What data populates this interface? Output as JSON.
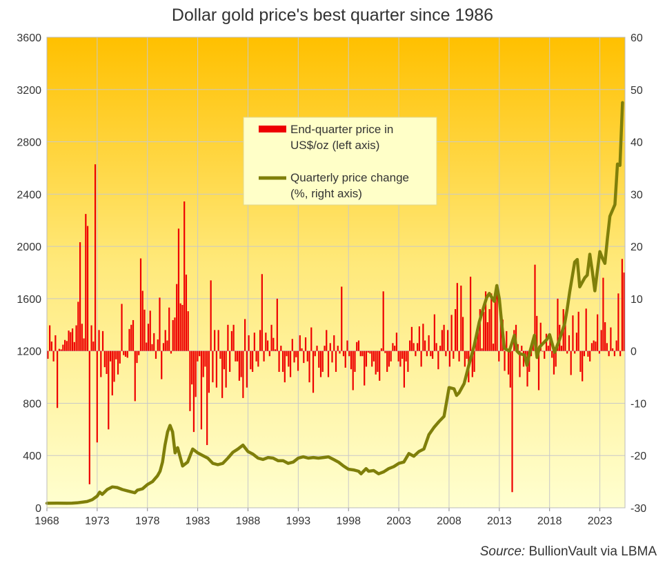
{
  "chart_data": {
    "type": "bar+line",
    "title": "Dollar gold price's best quarter since 1986",
    "source_prefix": "Source:",
    "source_text": "BullionVault via LBMA",
    "x_ticks": [
      "1968",
      "1973",
      "1978",
      "1983",
      "1988",
      "1993",
      "1998",
      "2003",
      "2008",
      "2013",
      "2018",
      "2023"
    ],
    "x_range": [
      1968,
      2025.5
    ],
    "left_axis": {
      "ticks": [
        0,
        400,
        800,
        1200,
        1600,
        2000,
        2400,
        2800,
        3200,
        3600
      ],
      "ylim": [
        0,
        3600
      ]
    },
    "right_axis": {
      "ticks": [
        -30,
        -20,
        -10,
        0,
        10,
        20,
        30,
        40,
        50,
        60
      ],
      "ylim": [
        -30,
        60
      ]
    },
    "legend": {
      "placement": "top-center",
      "bar_label_line1": "End-quarter price in",
      "bar_label_line2": "US$/oz (left axis)",
      "line_label_line1": "Quarterly price change",
      "line_label_line2": "(%, right axis)"
    },
    "colors": {
      "bars": "#ee0000",
      "line": "#7f7f0a",
      "bg_top": "#ffc000",
      "bg_bottom": "#ffffd0",
      "grid": "#c8c8c8"
    },
    "series": [
      {
        "role": "bars",
        "quarterly_change_pct": [
          -1.5,
          4.9,
          1.8,
          -2.0,
          3.0,
          -10.9,
          0.4,
          0.3,
          1.2,
          2.1,
          1.9,
          3.9,
          3.6,
          4.3,
          1.7,
          4.9,
          9.4,
          20.8,
          5.2,
          2.4,
          26.2,
          23.9,
          -25.5,
          4.9,
          1.8,
          35.7,
          -17.5,
          4.0,
          -5.0,
          3.8,
          -3.1,
          -4.4,
          -15.0,
          -2.0,
          -8.5,
          -5.9,
          -1.6,
          -4.5,
          -2.4,
          9.0,
          -0.8,
          -1.1,
          -1.3,
          4.2,
          5.0,
          5.9,
          -9.6,
          -2.3,
          -0.8,
          17.7,
          11.5,
          7.9,
          1.6,
          5.2,
          7.7,
          1.3,
          3.4,
          -1.5,
          2.2,
          10.2,
          -5.4,
          1.5,
          4.0,
          2.0,
          8.3,
          -0.5,
          5.9,
          6.4,
          12.8,
          23.4,
          9.1,
          8.8,
          28.6,
          14.6,
          7.6,
          -11.5,
          -6.4,
          -15.5,
          -8.8,
          -2.0,
          -1.0,
          -15.0,
          -5.0,
          -3.0,
          -18.0,
          -8.0,
          13.5,
          -6.0,
          4.0,
          -7.0,
          4.0,
          -1.5,
          -9.0,
          -3.5,
          -7.0,
          5.0,
          -4.0,
          3.8,
          5.0,
          -2.0,
          -2.0,
          -5.7,
          -5.0,
          -9.0,
          6.1,
          -7.0,
          3.0,
          -3.5,
          -4.0,
          3.5,
          -2.0,
          -3.0,
          4.0,
          14.7,
          -2.0,
          3.5,
          2.0,
          -1.0,
          5.0,
          2.5,
          0.3,
          10.0,
          -4.0,
          1.0,
          -4.0,
          -6.0,
          -1.0,
          -3.0,
          -5.0,
          2.3,
          -2.2,
          -1.2,
          -3.8,
          3.0,
          0.5,
          -2.3,
          2.6,
          -2.0,
          -6.0,
          4.5,
          -8.0,
          -1.0,
          1.0,
          -3.2,
          -5.0,
          -4.0,
          1.0,
          4.0,
          -5.0,
          1.5,
          -2.2,
          3.0,
          -4.0,
          1.0,
          -0.5,
          12.3,
          -1.0,
          -3.2,
          2.0,
          -1.0,
          -3.5,
          -7.5,
          -4.0,
          1.7,
          2.0,
          -1.0,
          -1.0,
          -6.6,
          -3.0,
          -0.3,
          -0.5,
          -3.0,
          -2.0,
          -4.5,
          -4.0,
          -5.7,
          0.5,
          11.4,
          -0.4,
          -4.0,
          -3.0,
          -2.0,
          1.5,
          1.0,
          3.5,
          -2.0,
          -3.0,
          -1.5,
          -7.0,
          -2.0,
          -4.0,
          2.0,
          4.6,
          1.5,
          -1.0,
          1.5,
          4.7,
          -3.0,
          5.2,
          2.0,
          -1.0,
          3.0,
          -1.0,
          -1.5,
          7.0,
          1.5,
          -3.5,
          1.0,
          4.0,
          5.0,
          -1.0,
          4.0,
          -3.0,
          6.9,
          -1.5,
          8.0,
          13.0,
          -2.0,
          12.5,
          6.5,
          -3.0,
          -1.5,
          -6.0,
          14.2,
          -5.0,
          -4.0,
          2.3,
          5.0,
          8.0,
          0.5,
          7.5,
          11.4,
          5.5,
          8.0,
          11.0,
          1.4,
          10.5,
          12.5,
          -2.0,
          8.0,
          6.0,
          -3.8,
          3.8,
          -4.5,
          -7.0,
          -27.0,
          4.0,
          5.0,
          1.3,
          -5.0,
          1.0,
          -3.0,
          -1.0,
          -6.8,
          -4.0,
          -1.0,
          2.0,
          16.5,
          6.7,
          -7.5,
          5.4,
          -0.1,
          -1.5,
          3.3,
          1.0,
          2.4,
          -1.3,
          -4.5,
          -3.0,
          10.0,
          5.0,
          1.0,
          8.0,
          6.0,
          -0.5,
          3.0,
          -4.6,
          6.8,
          -0.5,
          3.5,
          7.5,
          -4.0,
          -5.8,
          -1.0,
          8.1,
          -1.1,
          -2.0,
          1.5,
          2.0,
          1.8,
          7.0,
          -0.5,
          4.0,
          14.0,
          5.5,
          1.5,
          -1.0,
          4.5,
          0.5,
          -1.0,
          2.0,
          11.0,
          -1.0,
          17.6,
          15.0
        ]
      },
      {
        "role": "line",
        "points": [
          [
            1968.0,
            35.0
          ],
          [
            1969.0,
            35.5
          ],
          [
            1970.0,
            35.0
          ],
          [
            1970.5,
            36.0
          ],
          [
            1971.0,
            38.0
          ],
          [
            1971.5,
            43.0
          ],
          [
            1972.0,
            48.0
          ],
          [
            1972.5,
            62.0
          ],
          [
            1973.0,
            90.0
          ],
          [
            1973.25,
            120.0
          ],
          [
            1973.5,
            103.0
          ],
          [
            1974.0,
            140.0
          ],
          [
            1974.5,
            160.0
          ],
          [
            1975.0,
            155.0
          ],
          [
            1975.5,
            140.0
          ],
          [
            1976.0,
            130.0
          ],
          [
            1976.75,
            115.0
          ],
          [
            1977.0,
            135.0
          ],
          [
            1977.5,
            145.0
          ],
          [
            1978.0,
            178.0
          ],
          [
            1978.5,
            200.0
          ],
          [
            1979.0,
            245.0
          ],
          [
            1979.25,
            280.0
          ],
          [
            1979.5,
            350.0
          ],
          [
            1979.75,
            480.0
          ],
          [
            1980.0,
            580.0
          ],
          [
            1980.25,
            630.0
          ],
          [
            1980.5,
            580.0
          ],
          [
            1980.75,
            420.0
          ],
          [
            1981.0,
            460.0
          ],
          [
            1981.5,
            320.0
          ],
          [
            1982.0,
            350.0
          ],
          [
            1982.5,
            450.0
          ],
          [
            1983.0,
            420.0
          ],
          [
            1983.5,
            400.0
          ],
          [
            1984.0,
            380.0
          ],
          [
            1984.5,
            340.0
          ],
          [
            1985.0,
            330.0
          ],
          [
            1985.5,
            340.0
          ],
          [
            1986.0,
            380.0
          ],
          [
            1986.5,
            425.0
          ],
          [
            1987.0,
            450.0
          ],
          [
            1987.5,
            480.0
          ],
          [
            1988.0,
            430.0
          ],
          [
            1988.5,
            410.0
          ],
          [
            1989.0,
            380.0
          ],
          [
            1989.5,
            370.0
          ],
          [
            1990.0,
            385.0
          ],
          [
            1990.5,
            380.0
          ],
          [
            1991.0,
            360.0
          ],
          [
            1991.5,
            360.0
          ],
          [
            1992.0,
            340.0
          ],
          [
            1992.5,
            350.0
          ],
          [
            1993.0,
            380.0
          ],
          [
            1993.5,
            390.0
          ],
          [
            1994.0,
            380.0
          ],
          [
            1994.5,
            385.0
          ],
          [
            1995.0,
            380.0
          ],
          [
            1995.5,
            385.0
          ],
          [
            1996.0,
            390.0
          ],
          [
            1996.5,
            370.0
          ],
          [
            1997.0,
            350.0
          ],
          [
            1997.5,
            320.0
          ],
          [
            1998.0,
            295.0
          ],
          [
            1998.5,
            290.0
          ],
          [
            1999.0,
            280.0
          ],
          [
            1999.25,
            260.0
          ],
          [
            1999.75,
            300.0
          ],
          [
            2000.0,
            280.0
          ],
          [
            2000.5,
            285.0
          ],
          [
            2001.0,
            260.0
          ],
          [
            2001.5,
            275.0
          ],
          [
            2002.0,
            300.0
          ],
          [
            2002.5,
            315.0
          ],
          [
            2003.0,
            340.0
          ],
          [
            2003.5,
            350.0
          ],
          [
            2004.0,
            415.0
          ],
          [
            2004.5,
            395.0
          ],
          [
            2005.0,
            430.0
          ],
          [
            2005.5,
            450.0
          ],
          [
            2006.0,
            560.0
          ],
          [
            2006.5,
            615.0
          ],
          [
            2007.0,
            660.0
          ],
          [
            2007.5,
            700.0
          ],
          [
            2008.0,
            920.0
          ],
          [
            2008.5,
            910.0
          ],
          [
            2008.75,
            860.0
          ],
          [
            2009.0,
            880.0
          ],
          [
            2009.5,
            950.0
          ],
          [
            2010.0,
            1100.0
          ],
          [
            2010.5,
            1240.0
          ],
          [
            2011.0,
            1420.0
          ],
          [
            2011.5,
            1550.0
          ],
          [
            2011.75,
            1610.0
          ],
          [
            2012.0,
            1640.0
          ],
          [
            2012.5,
            1580.0
          ],
          [
            2012.75,
            1700.0
          ],
          [
            2013.0,
            1600.0
          ],
          [
            2013.25,
            1400.0
          ],
          [
            2013.5,
            1220.0
          ],
          [
            2014.0,
            1200.0
          ],
          [
            2014.5,
            1320.0
          ],
          [
            2014.75,
            1200.0
          ],
          [
            2015.0,
            1180.0
          ],
          [
            2015.5,
            1170.0
          ],
          [
            2015.75,
            1090.0
          ],
          [
            2016.0,
            1180.0
          ],
          [
            2016.5,
            1320.0
          ],
          [
            2016.75,
            1150.0
          ],
          [
            2017.0,
            1230.0
          ],
          [
            2017.5,
            1270.0
          ],
          [
            2017.75,
            1290.0
          ],
          [
            2018.0,
            1325.0
          ],
          [
            2018.5,
            1190.0
          ],
          [
            2019.0,
            1290.0
          ],
          [
            2019.5,
            1410.0
          ],
          [
            2019.75,
            1520.0
          ],
          [
            2020.0,
            1650.0
          ],
          [
            2020.5,
            1880.0
          ],
          [
            2020.75,
            1900.0
          ],
          [
            2021.0,
            1690.0
          ],
          [
            2021.5,
            1760.0
          ],
          [
            2021.75,
            1780.0
          ],
          [
            2022.0,
            1940.0
          ],
          [
            2022.25,
            1810.0
          ],
          [
            2022.5,
            1660.0
          ],
          [
            2022.75,
            1810.0
          ],
          [
            2023.0,
            1960.0
          ],
          [
            2023.25,
            1910.0
          ],
          [
            2023.5,
            1870.0
          ],
          [
            2023.75,
            2060.0
          ],
          [
            2024.0,
            2230.0
          ],
          [
            2024.5,
            2320.0
          ],
          [
            2024.75,
            2630.0
          ],
          [
            2025.0,
            2620.0
          ],
          [
            2025.25,
            3100.0
          ]
        ]
      }
    ]
  }
}
